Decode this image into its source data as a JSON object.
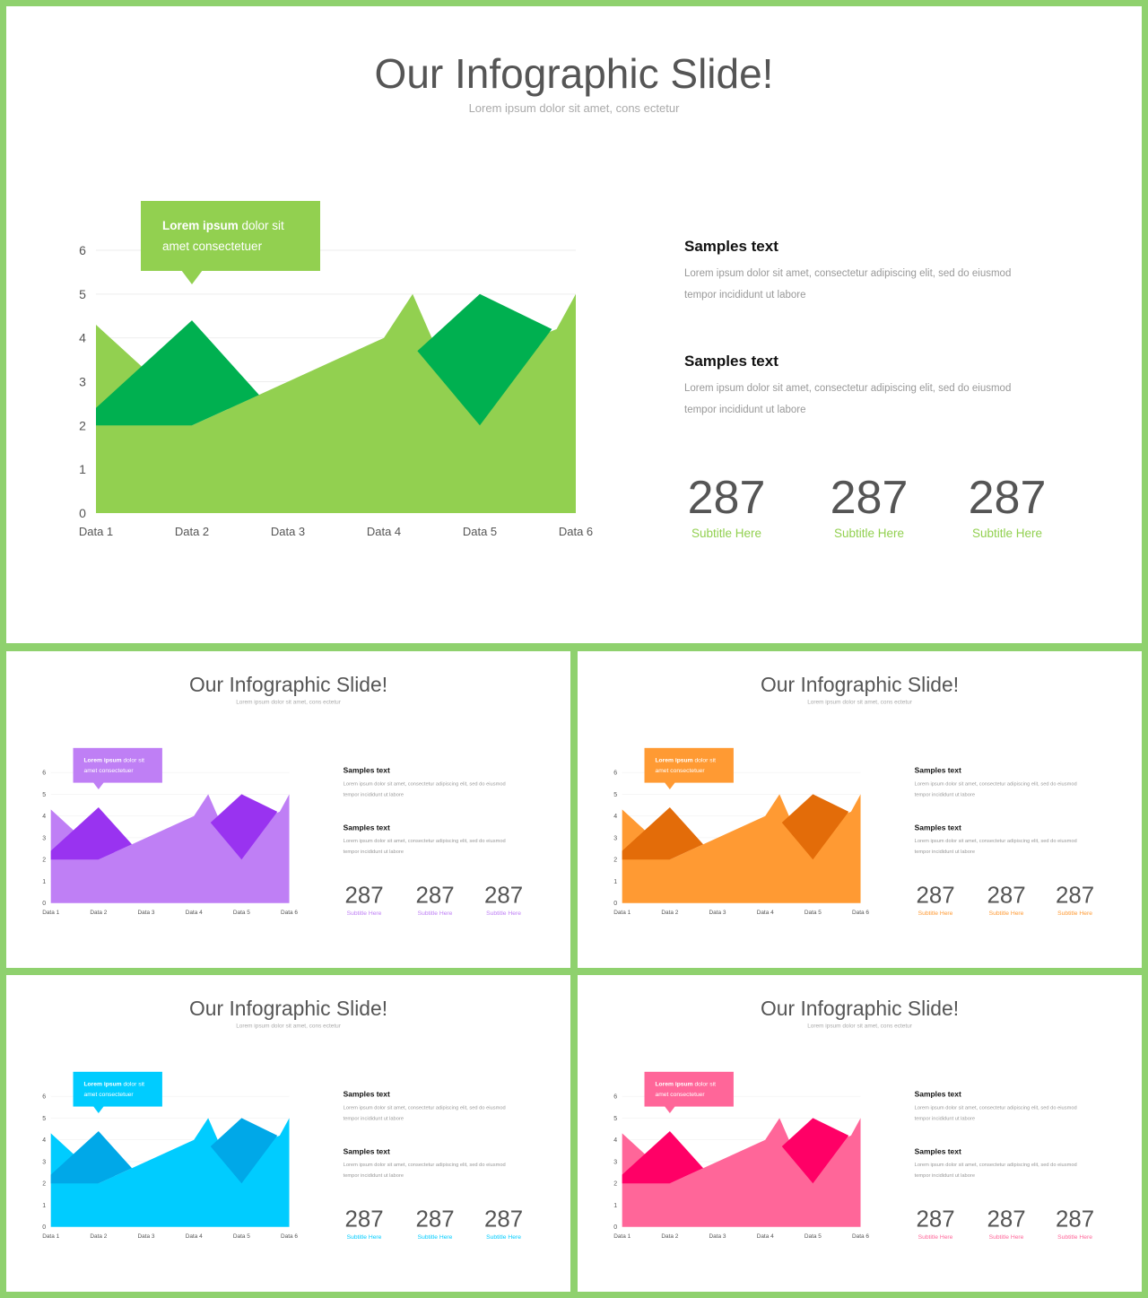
{
  "content": {
    "title": "Our Infographic Slide!",
    "subtitle": "Lorem ipsum dolor sit amet, cons ectetur",
    "callout": {
      "bold": "Lorem ipsum",
      "rest": "dolor sit",
      "line2": "amet consectetuer"
    },
    "side_items": [
      {
        "heading": "Samples text",
        "body_line1": "Lorem ipsum dolor sit amet, consectetur adipiscing elit, sed do eiusmod",
        "body_line2": "tempor incididunt ut labore"
      },
      {
        "heading": "Samples text",
        "body_line1": "Lorem ipsum dolor sit amet, consectetur adipiscing elit, sed do eiusmod",
        "body_line2": "tempor incididunt ut labore"
      }
    ],
    "stats": [
      {
        "value": "287",
        "label": "Subtitle Here"
      },
      {
        "value": "287",
        "label": "Subtitle Here"
      },
      {
        "value": "287",
        "label": "Subtitle Here"
      }
    ]
  },
  "themes": [
    {
      "main": "#92d050",
      "dark": "#00b050",
      "accent": "#92d050",
      "frame": "#8fd16e"
    },
    {
      "main": "#bf7ff5",
      "dark": "#9933f0",
      "accent": "#bf7ff5"
    },
    {
      "main": "#ff9a33",
      "dark": "#e36c09",
      "accent": "#ff9a33"
    },
    {
      "main": "#00ccff",
      "dark": "#00a8e8",
      "accent": "#00ccff"
    },
    {
      "main": "#ff6699",
      "dark": "#ff0066",
      "accent": "#ff6699"
    }
  ],
  "chart_data": {
    "type": "area",
    "categories": [
      "Data 1",
      "Data 2",
      "Data 3",
      "Data 4",
      "Data 5",
      "Data 6"
    ],
    "y_ticks": [
      "0",
      "1",
      "2",
      "3",
      "4",
      "5",
      "6"
    ],
    "ylim": [
      0,
      6
    ],
    "grid": true,
    "series": [
      {
        "x": [
          1,
          1.5,
          2,
          3,
          4,
          4.3,
          4.5,
          5,
          5.8,
          6
        ],
        "y": [
          4.3,
          3.3,
          2.0,
          3.0,
          4.0,
          5.0,
          4.0,
          3.5,
          4.2,
          5.0
        ]
      },
      {
        "x": [
          1,
          2,
          2.7,
          2,
          1
        ],
        "y": [
          2.4,
          4.4,
          2.7,
          2.0,
          2.0
        ]
      },
      {
        "x": [
          4.35,
          5,
          5.75,
          5
        ],
        "y": [
          3.7,
          5.0,
          4.2,
          2.0
        ]
      }
    ]
  }
}
